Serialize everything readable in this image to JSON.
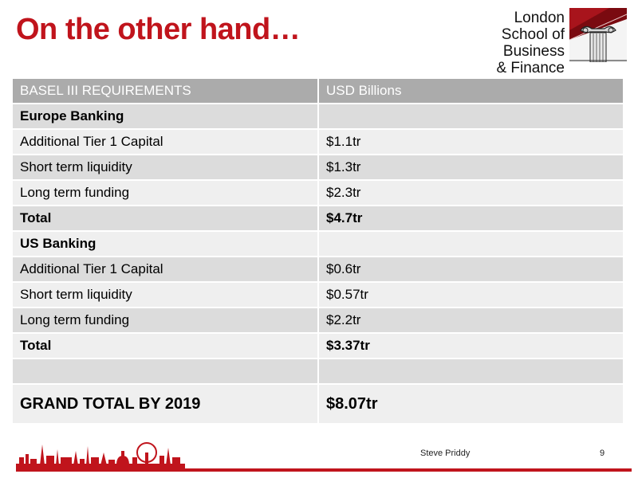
{
  "slide": {
    "title": "On the other hand…",
    "logo_lines": [
      "London",
      "School of Business",
      "& Finance"
    ]
  },
  "table": {
    "headers": [
      "BASEL III REQUIREMENTS",
      "USD Billions"
    ],
    "rows": [
      {
        "label": "Europe Banking",
        "value": ""
      },
      {
        "label": "Additional Tier 1 Capital",
        "value": "$1.1tr"
      },
      {
        "label": "Short term liquidity",
        "value": "$1.3tr"
      },
      {
        "label": "Long term funding",
        "value": "$2.3tr"
      },
      {
        "label": "Total",
        "value": "$4.7tr"
      },
      {
        "label": "US Banking",
        "value": ""
      },
      {
        "label": "Additional Tier 1 Capital",
        "value": "$0.6tr"
      },
      {
        "label": "Short term liquidity",
        "value": "$0.57tr"
      },
      {
        "label": "Long term funding",
        "value": "$2.2tr"
      },
      {
        "label": "Total",
        "value": "$3.37tr"
      },
      {
        "label": "",
        "value": ""
      },
      {
        "label": "GRAND TOTAL BY 2019",
        "value": "$8.07tr"
      }
    ]
  },
  "footer": {
    "author": "Steve Priddy",
    "page_number": "9"
  },
  "colors": {
    "accent": "#c0141c",
    "header_bg": "#ababab",
    "row_dark": "#dcdcdc",
    "row_light": "#efefef"
  },
  "icons": [
    "column-emblem-icon",
    "london-skyline-icon"
  ]
}
